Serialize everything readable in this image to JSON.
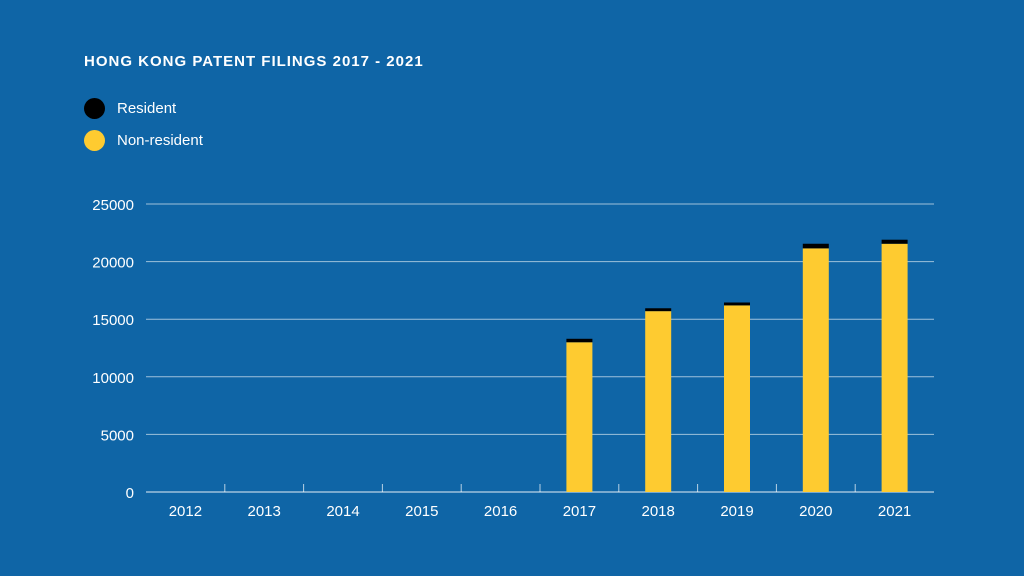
{
  "chart_data": {
    "type": "bar",
    "stacked": true,
    "title": "HONG KONG PATENT FILINGS 2017 - 2021",
    "categories": [
      "2012",
      "2013",
      "2014",
      "2015",
      "2016",
      "2017",
      "2018",
      "2019",
      "2020",
      "2021"
    ],
    "series": [
      {
        "name": "Non-resident",
        "color": "#fecb30",
        "values": [
          null,
          null,
          null,
          null,
          null,
          13000,
          15700,
          16200,
          21150,
          21550
        ]
      },
      {
        "name": "Resident",
        "color": "#000000",
        "values": [
          null,
          null,
          null,
          null,
          null,
          300,
          250,
          250,
          400,
          350
        ]
      }
    ],
    "ylim": [
      0,
      25000
    ],
    "yticks": [
      "0",
      "5000",
      "10000",
      "15000",
      "20000",
      "25000"
    ],
    "grid": true,
    "legend_position": "top-left"
  }
}
